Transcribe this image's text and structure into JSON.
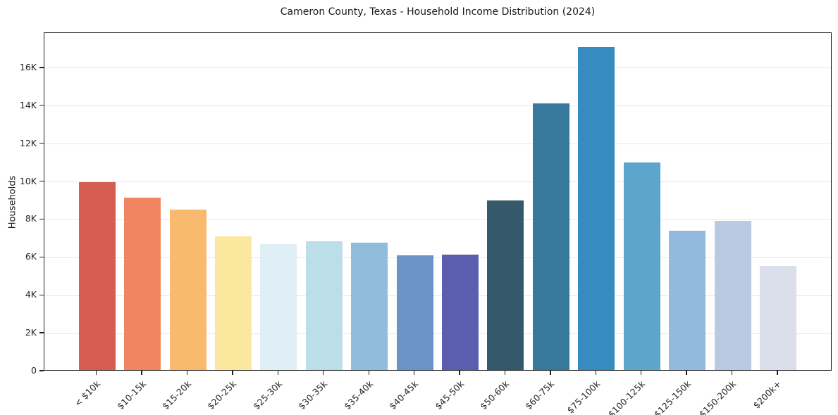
{
  "chart_data": {
    "type": "bar",
    "title": "Cameron County, Texas - Household Income Distribution (2024)",
    "xlabel": "",
    "ylabel": "Households",
    "categories": [
      "< $10k",
      "$10-15k",
      "$15-20k",
      "$20-25k",
      "$25-30k",
      "$30-35k",
      "$35-40k",
      "$40-45k",
      "$45-50k",
      "$50-60k",
      "$60-75k",
      "$75-100k",
      "$100-125k",
      "$125-150k",
      "$150-200k",
      "$200k+"
    ],
    "values": [
      9900,
      9100,
      8450,
      7050,
      6650,
      6800,
      6700,
      6050,
      6100,
      8950,
      14050,
      17050,
      10950,
      7350,
      7850,
      5500
    ],
    "bar_colors": [
      "#d65d52",
      "#f28561",
      "#f9b96e",
      "#fce79e",
      "#e0eff5",
      "#bcdee8",
      "#90bddc",
      "#6b93c7",
      "#5b5eae",
      "#34596b",
      "#37799d",
      "#368cc1",
      "#5ea5cb",
      "#92badd",
      "#bbcae3",
      "#dbdeeb"
    ],
    "ylim": [
      0,
      17850
    ],
    "ytick_values": [
      0,
      2000,
      4000,
      6000,
      8000,
      10000,
      12000,
      14000,
      16000
    ],
    "ytick_labels": [
      "0",
      "2K",
      "4K",
      "6K",
      "8K",
      "10K",
      "12K",
      "14K",
      "16K"
    ],
    "xtick_rotation_deg": 45,
    "grid": "horizontal",
    "grid_color": "#e7e7e7",
    "spine_color": "#1f1f1f",
    "background_color": "#ffffff",
    "legend": "none"
  }
}
